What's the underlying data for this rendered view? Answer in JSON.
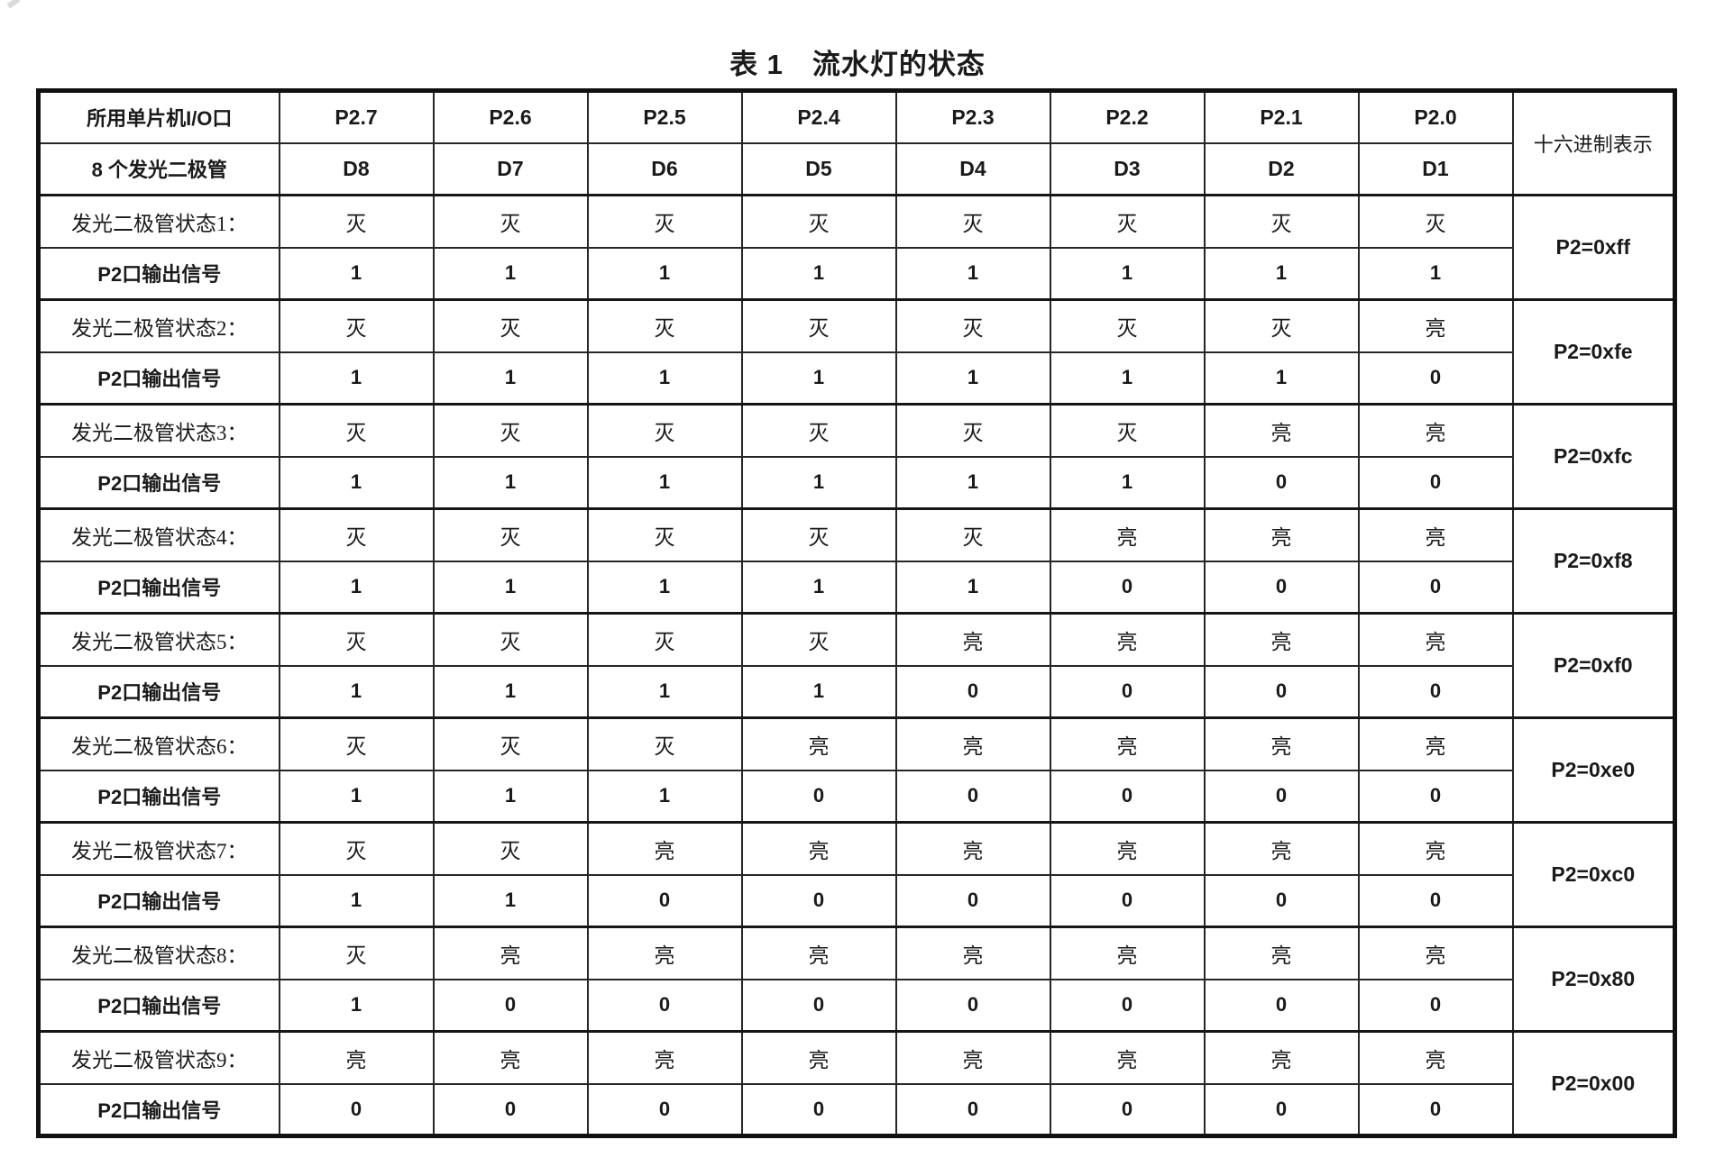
{
  "page": {
    "title": "表 1　流水灯的状态"
  },
  "colors": {
    "text": "#1a1a1a",
    "border": "#262626",
    "background": "#ffffff"
  },
  "table": {
    "header": {
      "io_label": "所用单片机I/O口",
      "ports": [
        "P2.7",
        "P2.6",
        "P2.5",
        "P2.4",
        "P2.3",
        "P2.2",
        "P2.1",
        "P2.0"
      ],
      "led_label": "8 个发光二极管",
      "leds": [
        "D8",
        "D7",
        "D6",
        "D5",
        "D4",
        "D3",
        "D2",
        "D1"
      ],
      "hex_label": "十六进制表示"
    },
    "signal_row_label": "P2口输出信号",
    "on_text": "亮",
    "off_text": "灭",
    "states": [
      {
        "label": "发光二极管状态1：",
        "leds": [
          "灭",
          "灭",
          "灭",
          "灭",
          "灭",
          "灭",
          "灭",
          "灭"
        ],
        "signals": [
          "1",
          "1",
          "1",
          "1",
          "1",
          "1",
          "1",
          "1"
        ],
        "hex": "P2=0xff"
      },
      {
        "label": "发光二极管状态2：",
        "leds": [
          "灭",
          "灭",
          "灭",
          "灭",
          "灭",
          "灭",
          "灭",
          "亮"
        ],
        "signals": [
          "1",
          "1",
          "1",
          "1",
          "1",
          "1",
          "1",
          "0"
        ],
        "hex": "P2=0xfe"
      },
      {
        "label": "发光二极管状态3：",
        "leds": [
          "灭",
          "灭",
          "灭",
          "灭",
          "灭",
          "灭",
          "亮",
          "亮"
        ],
        "signals": [
          "1",
          "1",
          "1",
          "1",
          "1",
          "1",
          "0",
          "0"
        ],
        "hex": "P2=0xfc"
      },
      {
        "label": "发光二极管状态4：",
        "leds": [
          "灭",
          "灭",
          "灭",
          "灭",
          "灭",
          "亮",
          "亮",
          "亮"
        ],
        "signals": [
          "1",
          "1",
          "1",
          "1",
          "1",
          "0",
          "0",
          "0"
        ],
        "hex": "P2=0xf8"
      },
      {
        "label": "发光二极管状态5：",
        "leds": [
          "灭",
          "灭",
          "灭",
          "灭",
          "亮",
          "亮",
          "亮",
          "亮"
        ],
        "signals": [
          "1",
          "1",
          "1",
          "1",
          "0",
          "0",
          "0",
          "0"
        ],
        "hex": "P2=0xf0"
      },
      {
        "label": "发光二极管状态6：",
        "leds": [
          "灭",
          "灭",
          "灭",
          "亮",
          "亮",
          "亮",
          "亮",
          "亮"
        ],
        "signals": [
          "1",
          "1",
          "1",
          "0",
          "0",
          "0",
          "0",
          "0"
        ],
        "hex": "P2=0xe0"
      },
      {
        "label": "发光二极管状态7：",
        "leds": [
          "灭",
          "灭",
          "亮",
          "亮",
          "亮",
          "亮",
          "亮",
          "亮"
        ],
        "signals": [
          "1",
          "1",
          "0",
          "0",
          "0",
          "0",
          "0",
          "0"
        ],
        "hex": "P2=0xc0"
      },
      {
        "label": "发光二极管状态8：",
        "leds": [
          "灭",
          "亮",
          "亮",
          "亮",
          "亮",
          "亮",
          "亮",
          "亮"
        ],
        "signals": [
          "1",
          "0",
          "0",
          "0",
          "0",
          "0",
          "0",
          "0"
        ],
        "hex": "P2=0x80"
      },
      {
        "label": "发光二极管状态9：",
        "leds": [
          "亮",
          "亮",
          "亮",
          "亮",
          "亮",
          "亮",
          "亮",
          "亮"
        ],
        "signals": [
          "0",
          "0",
          "0",
          "0",
          "0",
          "0",
          "0",
          "0"
        ],
        "hex": "P2=0x00"
      }
    ]
  }
}
